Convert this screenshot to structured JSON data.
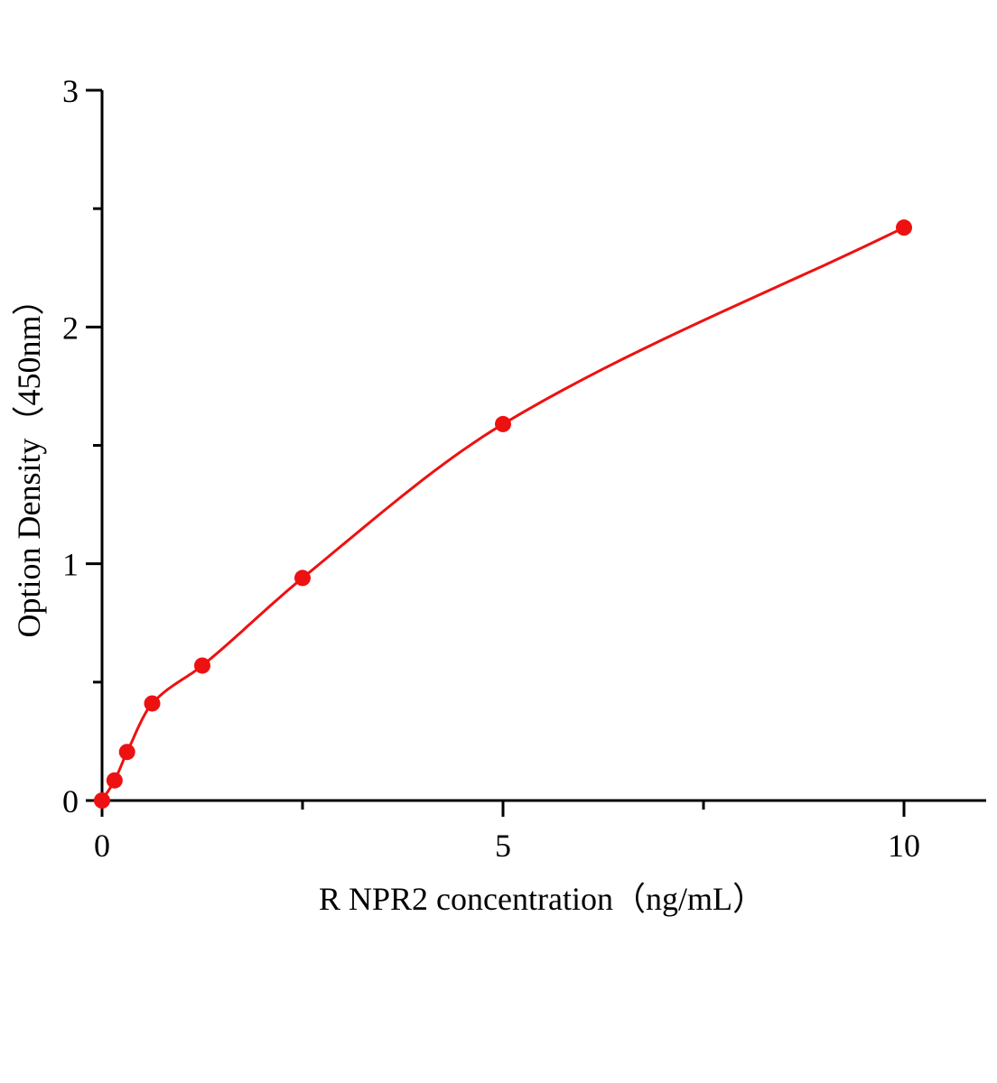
{
  "chart_data": {
    "type": "scatter",
    "title": "",
    "xlabel": "R NPR2  concentration（ng/mL）",
    "ylabel": "Option Density（450nm）",
    "xlim": [
      0,
      10.5
    ],
    "ylim": [
      0,
      3
    ],
    "xticks": [
      0,
      5,
      10
    ],
    "xtick_labels": [
      "0",
      "5",
      "10"
    ],
    "x_minor_ticks": [
      2.5,
      7.5
    ],
    "yticks": [
      0,
      1,
      2,
      3
    ],
    "ytick_labels": [
      "0",
      "1",
      "2",
      "3"
    ],
    "y_minor_ticks": [
      0.5,
      1.5,
      2.5
    ],
    "grid": false,
    "series": [
      {
        "x": [
          0,
          0.156,
          0.312,
          0.625,
          1.25,
          2.5,
          5,
          10
        ],
        "y": [
          0,
          0.085,
          0.205,
          0.41,
          0.57,
          0.94,
          1.59,
          2.42
        ],
        "fit_curve": true
      }
    ],
    "colors": {
      "series": "#ee1111",
      "axis": "#000000"
    }
  }
}
